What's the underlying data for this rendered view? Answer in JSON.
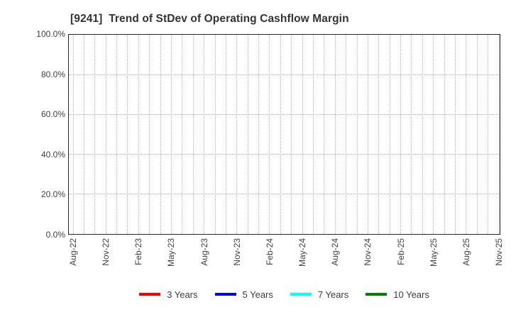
{
  "chart": {
    "colors": {
      "background": "#ffffff",
      "axis_border": "#262626",
      "grid": "#b3b3b3",
      "title_text": "#333333",
      "tick_text": "#404040",
      "legend_text": "#3c3c3c"
    }
  },
  "chart_data": {
    "type": "line",
    "title": "[9241]  Trend of StDev of Operating Cashflow Margin",
    "x_tick_labels": [
      "Aug-22",
      "Nov-22",
      "Feb-23",
      "May-23",
      "Aug-23",
      "Nov-23",
      "Feb-24",
      "May-24",
      "Aug-24",
      "Nov-24",
      "Feb-25",
      "May-25",
      "Aug-25",
      "Nov-25"
    ],
    "x_total_months": 40,
    "x_minor_ticks_per_label": 3,
    "y_tick_labels": [
      "100.0%",
      "80.0%",
      "60.0%",
      "40.0%",
      "20.0%",
      "0.0%"
    ],
    "ylim": [
      0,
      100
    ],
    "grid": true,
    "legend_position": "bottom-center",
    "series": [
      {
        "name": "3 Years",
        "color": "#ff0000",
        "values": []
      },
      {
        "name": "5 Years",
        "color": "#0000ff",
        "values": []
      },
      {
        "name": "7 Years",
        "color": "#00ffff",
        "values": []
      },
      {
        "name": "10 Years",
        "color": "#008000",
        "values": []
      }
    ],
    "note": "plot area is empty - no data lines are drawn"
  }
}
